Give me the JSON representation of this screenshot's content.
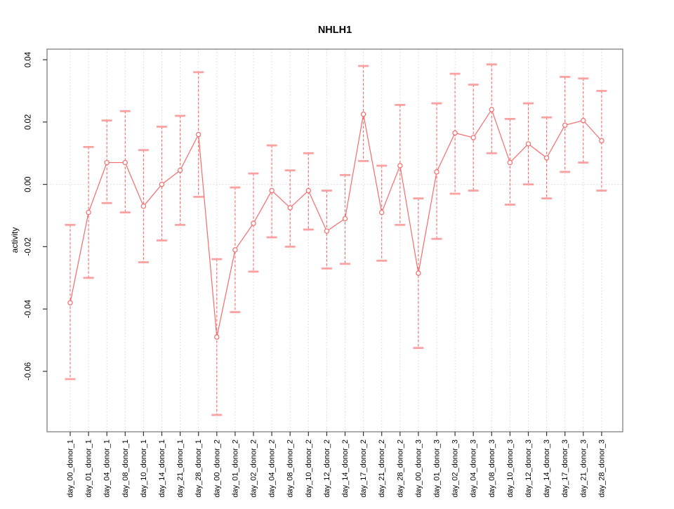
{
  "chart_data": {
    "type": "line",
    "title": "NHLH1",
    "ylabel": "activity",
    "xlabel": "",
    "legend": null,
    "grid": "vertical-dotted",
    "ref_line_y": 0,
    "categories": [
      "day_00_donor_1",
      "day_01_donor_1",
      "day_04_donor_1",
      "day_08_donor_1",
      "day_10_donor_1",
      "day_14_donor_1",
      "day_21_donor_1",
      "day_28_donor_1",
      "day_00_donor_2",
      "day_01_donor_2",
      "day_02_donor_2",
      "day_04_donor_2",
      "day_08_donor_2",
      "day_10_donor_2",
      "day_12_donor_2",
      "day_14_donor_2",
      "day_17_donor_2",
      "day_21_donor_2",
      "day_28_donor_2",
      "day_00_donor_3",
      "day_01_donor_3",
      "day_02_donor_3",
      "day_04_donor_3",
      "day_08_donor_3",
      "day_10_donor_3",
      "day_12_donor_3",
      "day_14_donor_3",
      "day_17_donor_3",
      "day_21_donor_3",
      "day_28_donor_3"
    ],
    "series": [
      {
        "name": "activity",
        "values": [
          -0.038,
          -0.009,
          0.007,
          0.007,
          -0.007,
          0.0,
          0.0045,
          0.016,
          -0.049,
          -0.021,
          -0.0125,
          -0.002,
          -0.0075,
          -0.002,
          -0.015,
          -0.011,
          0.0225,
          -0.009,
          0.006,
          -0.0285,
          0.004,
          0.0165,
          0.015,
          0.024,
          0.007,
          0.013,
          0.0085,
          0.019,
          0.0205,
          0.014
        ],
        "error_low": [
          -0.0625,
          -0.03,
          -0.006,
          -0.009,
          -0.025,
          -0.018,
          -0.013,
          -0.004,
          -0.074,
          -0.041,
          -0.028,
          -0.017,
          -0.02,
          -0.0145,
          -0.027,
          -0.0255,
          0.0075,
          -0.0245,
          -0.013,
          -0.0525,
          -0.0175,
          -0.003,
          -0.002,
          0.01,
          -0.0065,
          0.0,
          -0.0045,
          0.004,
          0.007,
          -0.002
        ],
        "error_high": [
          -0.013,
          0.012,
          0.0205,
          0.0235,
          0.011,
          0.0185,
          0.022,
          0.036,
          -0.024,
          -0.001,
          0.0035,
          0.0125,
          0.0045,
          0.01,
          -0.002,
          0.003,
          0.038,
          0.006,
          0.0255,
          -0.0045,
          0.026,
          0.0355,
          0.032,
          0.0385,
          0.021,
          0.026,
          0.0215,
          0.0345,
          0.034,
          0.03
        ]
      }
    ],
    "yticks": [
      0.04,
      0.02,
      0.0,
      -0.02,
      -0.04,
      -0.06
    ],
    "ytick_labels": [
      "0.04",
      "0.02",
      "0.00",
      "-0.02",
      "-0.04",
      "-0.06"
    ],
    "ylim": [
      -0.0794,
      0.0434
    ],
    "legend_position": "none",
    "colors": {
      "series": "#f56b6b",
      "error_cap": "#fba1a1",
      "grid": "#d6d6d6",
      "ref_line": "#d6d6d6",
      "box": "#808080",
      "tick": "#333333",
      "text": "#000000"
    }
  }
}
